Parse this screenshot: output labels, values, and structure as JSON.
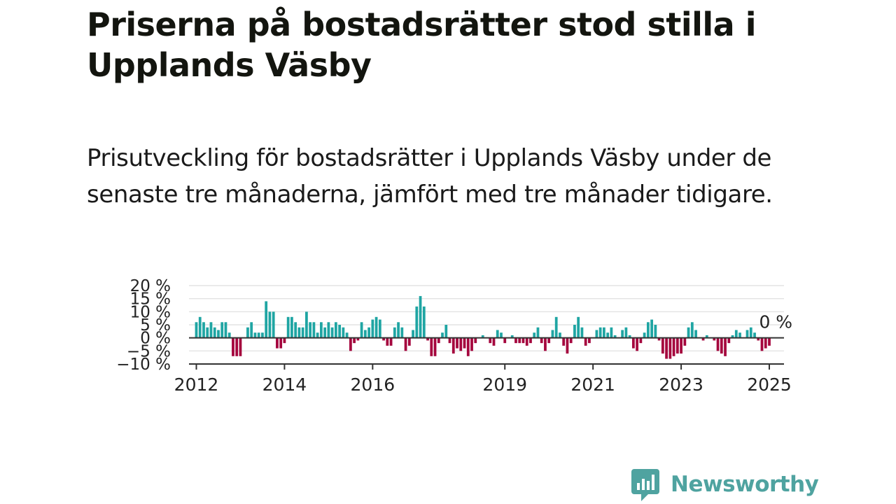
{
  "title": "Priserna på bostadsrätter stod stilla i Upplands Väsby",
  "subtitle": "Prisutveckling för bostadsrätter i Upplands Väsby under de senaste tre månaderna, jämfört med tre månader tidigare.",
  "logo": {
    "text": "Newsworthy",
    "icon": "newsworthy-logo-icon"
  },
  "colors": {
    "positive": "#1fa5a3",
    "negative": "#a5063e",
    "zero_line": "#333333",
    "grid": "#dedede",
    "axis": "#333333"
  },
  "chart_data": {
    "type": "bar",
    "title": "Priserna på bostadsrätter stod stilla i Upplands Väsby",
    "subtitle": "Prisutveckling för bostadsrätter i Upplands Väsby under de senaste tre månaderna, jämfört med tre månader tidigare.",
    "xlabel": "",
    "ylabel": "",
    "unit": "%",
    "x_start": "2012-01",
    "x_step": "month",
    "xlim": [
      "2011-11",
      "2025-05"
    ],
    "ylim": [
      -10,
      20
    ],
    "y_ticks": [
      -10,
      -5,
      0,
      5,
      10,
      15,
      20
    ],
    "y_tick_labels": [
      "−10 %",
      "−5 %",
      "0 %",
      "5 %",
      "10 %",
      "15 %",
      "20 %"
    ],
    "x_ticks": [
      "2012",
      "2014",
      "2016",
      "2019",
      "2021",
      "2023",
      "2025"
    ],
    "grid": true,
    "legend": "none",
    "last_value_label": "0 %",
    "series": [
      {
        "values": [
          6,
          8,
          6,
          4,
          6,
          4,
          3,
          6,
          6,
          2,
          -7,
          -7,
          -7,
          0,
          4,
          6,
          2,
          2,
          2,
          14,
          10,
          10,
          -4,
          -4,
          -2,
          8,
          8,
          6,
          4,
          4,
          10,
          6,
          6,
          2,
          6,
          4,
          6,
          4,
          6,
          5,
          4,
          2,
          -5,
          -2,
          -1,
          6,
          3,
          4,
          7,
          8,
          7,
          -1,
          -3,
          -3,
          4,
          6,
          4,
          -5,
          -3,
          3,
          12,
          16,
          12,
          -1,
          -7,
          -7,
          -2,
          2,
          5,
          -2,
          -6,
          -4,
          -5,
          -4,
          -7,
          -5,
          -2,
          0,
          1,
          0,
          -2,
          -3,
          3,
          2,
          -2,
          0,
          1,
          -2,
          -2,
          -2,
          -3,
          -2,
          2,
          4,
          -2,
          -5,
          -2,
          3,
          8,
          2,
          -3,
          -6,
          -2,
          5,
          8,
          4,
          -3,
          -2,
          0,
          3,
          4,
          4,
          2,
          4,
          1,
          0,
          3,
          4,
          1,
          -4,
          -5,
          -2,
          2,
          6,
          7,
          5,
          -1,
          -6,
          -8,
          -8,
          -7,
          -6,
          -6,
          -3,
          4,
          6,
          3,
          0,
          -1,
          1,
          0,
          -1,
          -5,
          -6,
          -7,
          -2,
          1,
          3,
          2,
          0,
          3,
          4,
          2,
          -1,
          -5,
          -4,
          -3,
          0
        ]
      }
    ]
  }
}
